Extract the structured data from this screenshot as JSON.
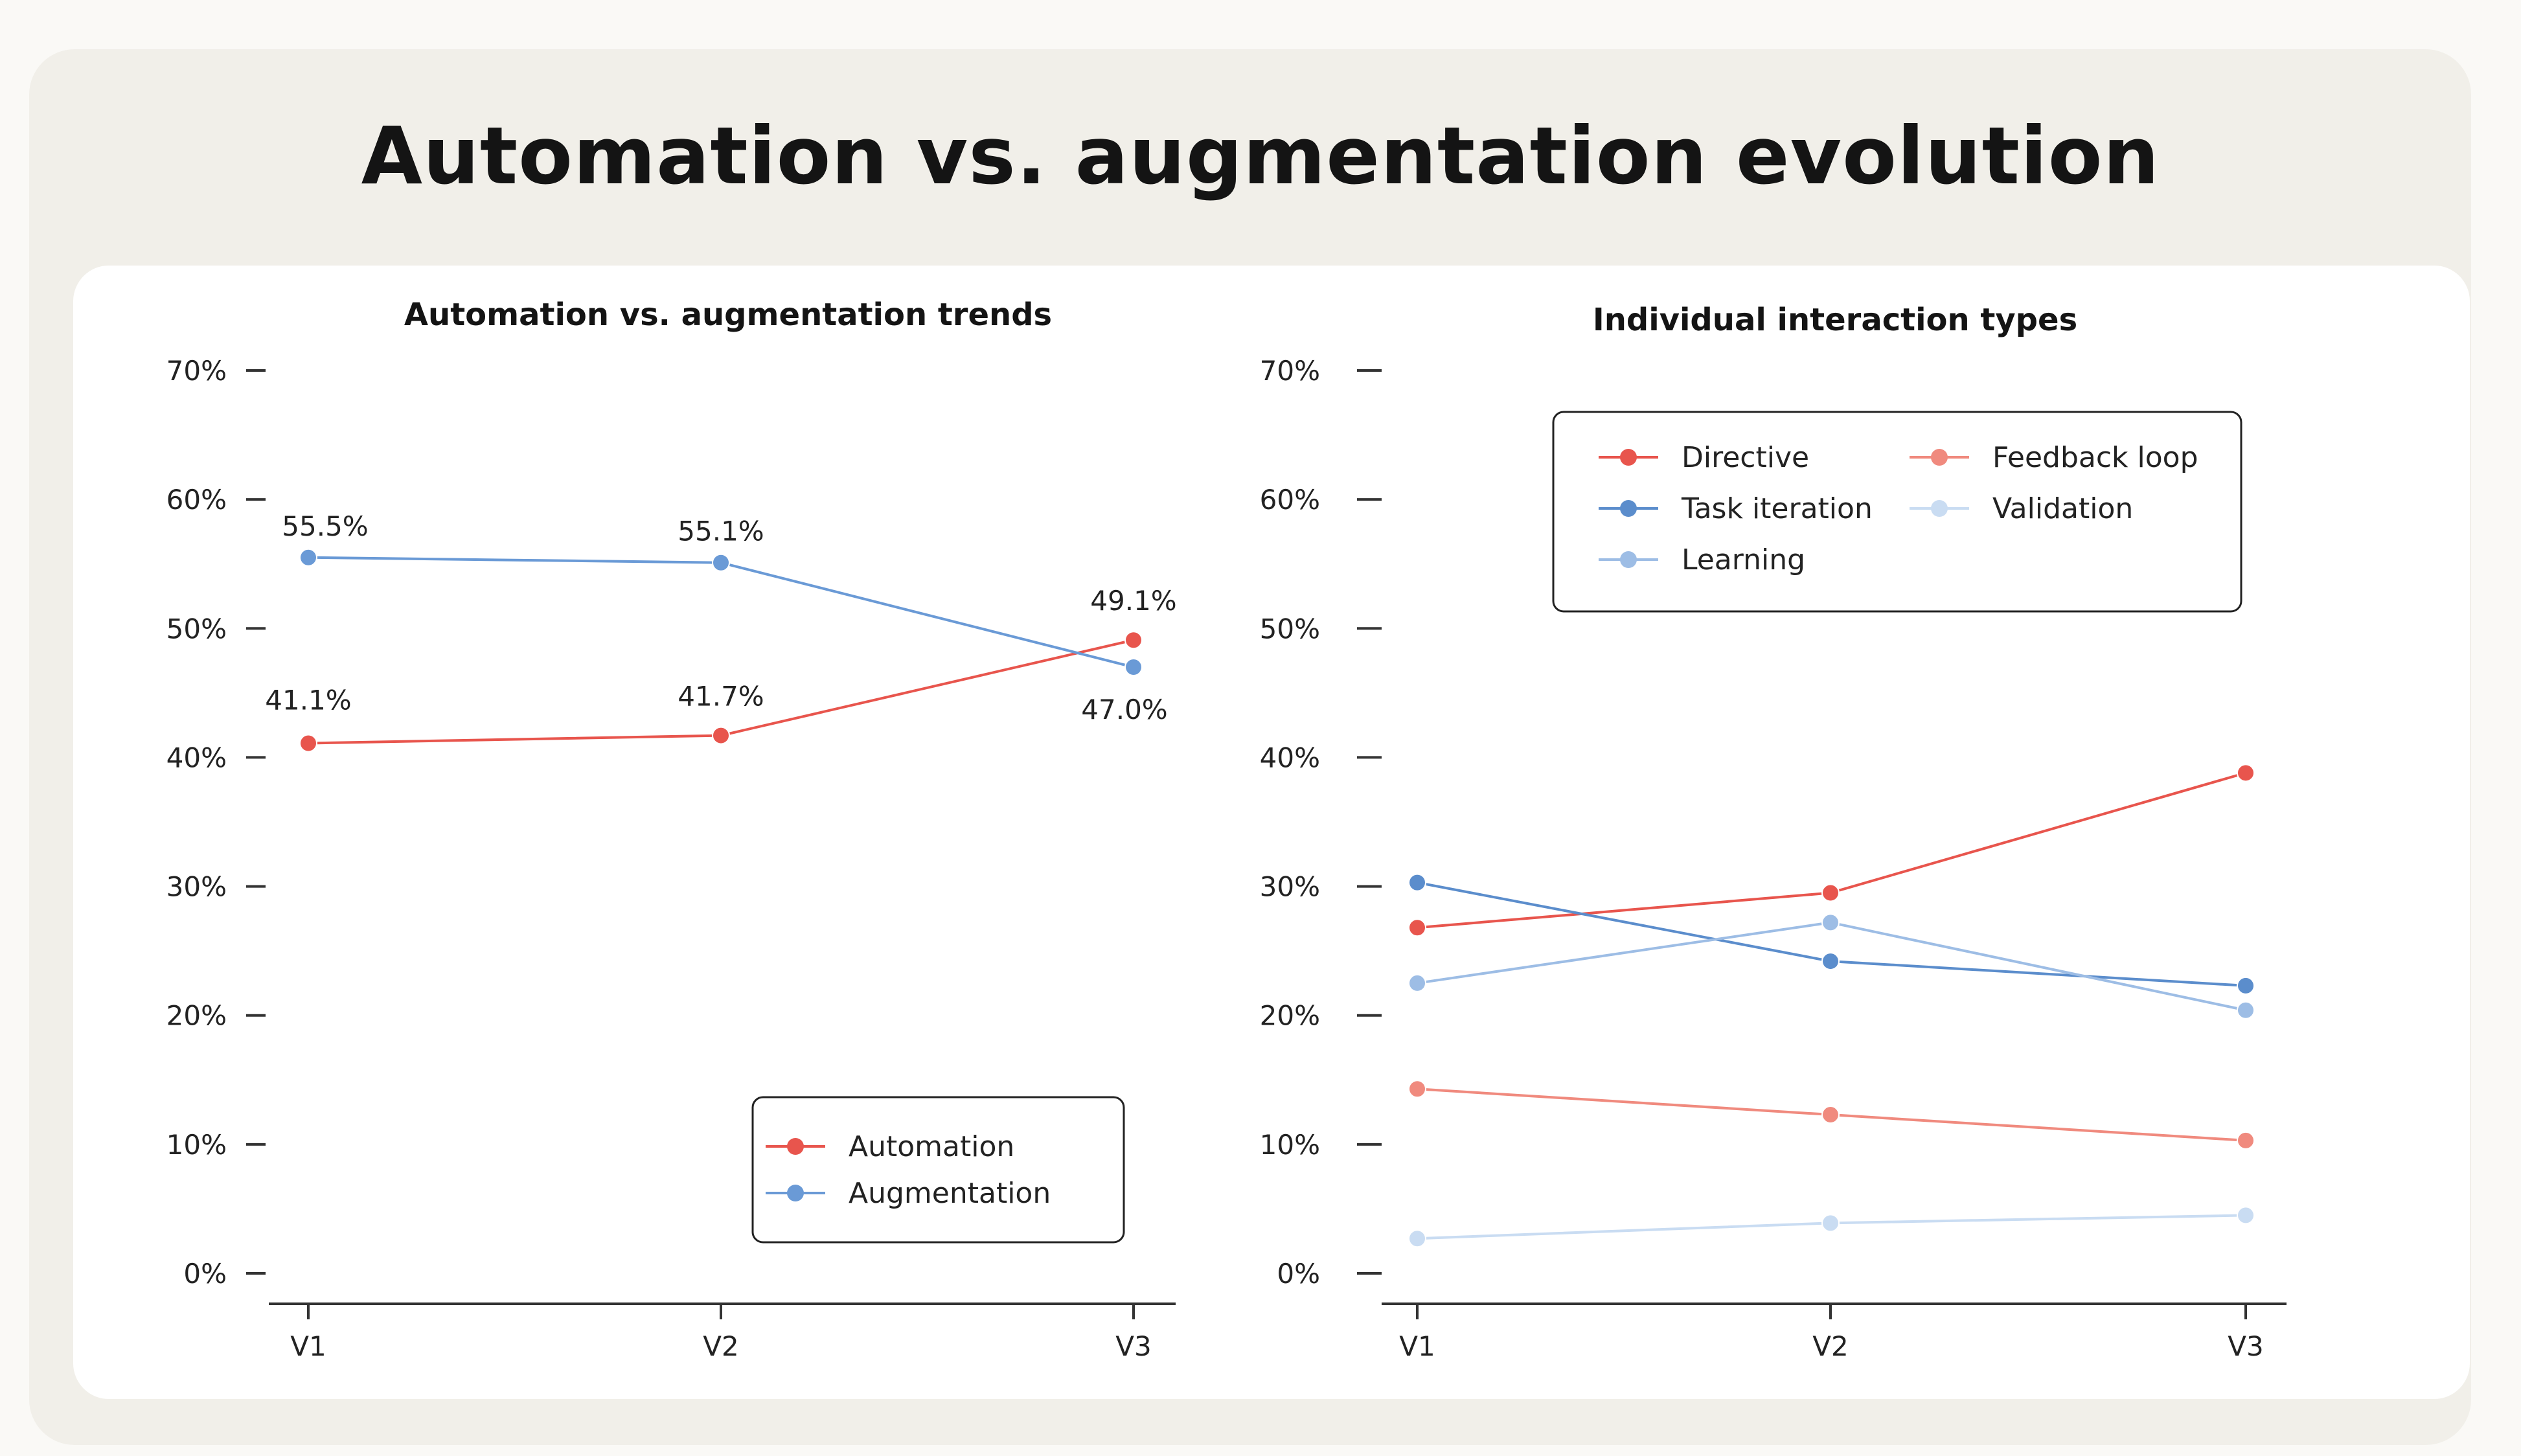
{
  "title": "Automation vs. augmentation evolution",
  "chart_data": [
    {
      "type": "line",
      "title": "Automation vs. augmentation trends",
      "categories": [
        "V1",
        "V2",
        "V3"
      ],
      "ylim": [
        0,
        70
      ],
      "yticks": [
        "0%",
        "10%",
        "20%",
        "30%",
        "40%",
        "50%",
        "60%",
        "70%"
      ],
      "legend_position": "bottom-right",
      "series": [
        {
          "name": "Automation",
          "color": "#e8554d",
          "values": [
            41.1,
            41.7,
            49.1
          ],
          "labels": [
            "41.1%",
            "41.7%",
            "49.1%"
          ]
        },
        {
          "name": "Augmentation",
          "color": "#6a9ad6",
          "values": [
            55.5,
            55.1,
            47.0
          ],
          "labels": [
            "55.5%",
            "55.1%",
            "47.0%"
          ]
        }
      ]
    },
    {
      "type": "line",
      "title": "Individual interaction types",
      "categories": [
        "V1",
        "V2",
        "V3"
      ],
      "ylim": [
        0,
        70
      ],
      "yticks": [
        "0%",
        "10%",
        "20%",
        "30%",
        "40%",
        "50%",
        "60%",
        "70%"
      ],
      "legend_position": "top",
      "series": [
        {
          "name": "Directive",
          "color": "#e8554d",
          "values": [
            26.8,
            29.5,
            38.8
          ]
        },
        {
          "name": "Feedback loop",
          "color": "#f08a7e",
          "values": [
            14.3,
            12.3,
            10.3
          ]
        },
        {
          "name": "Task iteration",
          "color": "#5b8dcc",
          "values": [
            30.3,
            24.2,
            22.3
          ]
        },
        {
          "name": "Validation",
          "color": "#c9dcf2",
          "values": [
            2.7,
            3.9,
            4.5
          ]
        },
        {
          "name": "Learning",
          "color": "#9dbde5",
          "values": [
            22.5,
            27.2,
            20.4
          ]
        }
      ]
    }
  ]
}
